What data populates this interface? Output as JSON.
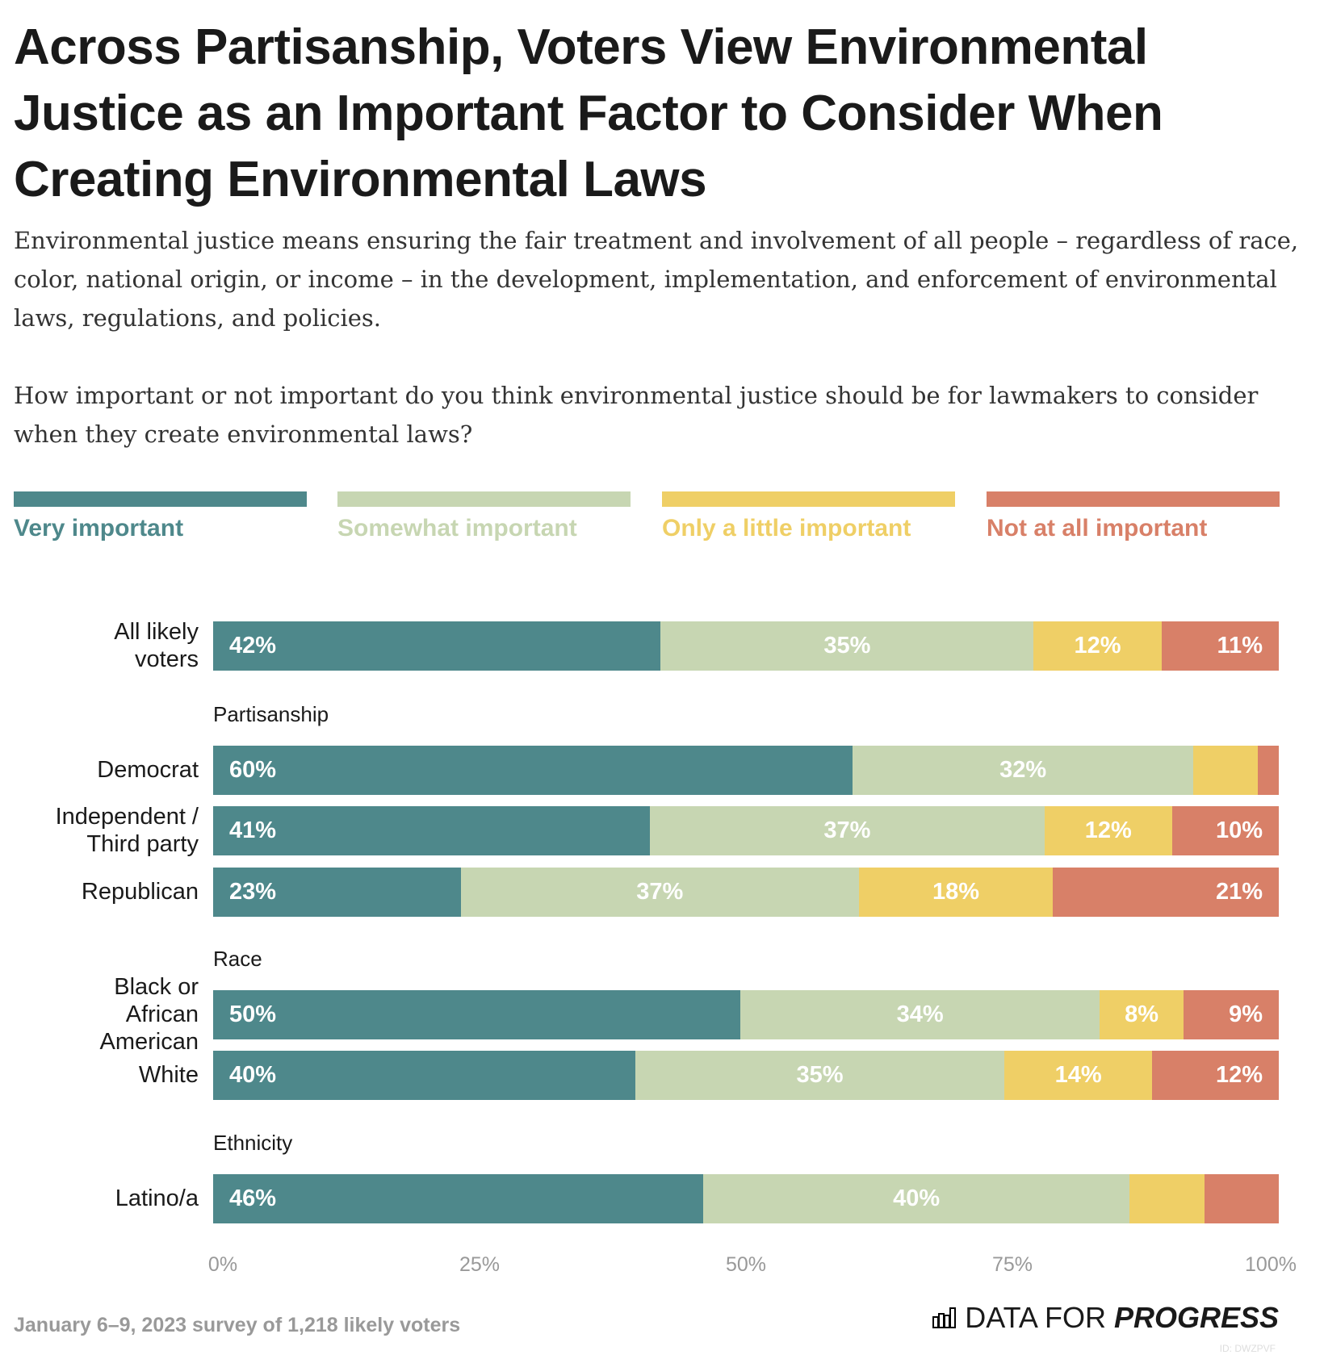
{
  "title": "Across Partisanship, Voters View Environmental Justice as an Important Factor to Consider When Creating Environmental Laws",
  "subtitle": "Environmental justice means ensuring the fair treatment and involvement of all people – regardless of race, color, national origin, or income – in the development, implementation, and enforcement of environmental laws, regulations, and policies.",
  "question": "How important or not important do you think environmental justice should be for lawmakers to consider when they create environmental laws?",
  "footer": "January 6–9, 2023 survey of 1,218 likely voters",
  "logo": {
    "light": "DATA FOR",
    "bold": "PROGRESS",
    "id": "ID: DWZPVF"
  },
  "chart_data": {
    "type": "bar",
    "orientation": "horizontal-stacked",
    "legend_placement": "top",
    "series": [
      {
        "name": "Very important",
        "color": "#4e888b"
      },
      {
        "name": "Somewhat important",
        "color": "#c7d6b2"
      },
      {
        "name": "Only a little important",
        "color": "#efcf66"
      },
      {
        "name": "Not at all important",
        "color": "#d88068"
      }
    ],
    "groups": [
      "",
      "Partisanship",
      "Race",
      "Ethnicity"
    ],
    "rows": [
      {
        "label": "All likely voters",
        "group": 0,
        "values": [
          42,
          35,
          12,
          11
        ],
        "labels": [
          "42%",
          "35%",
          "12%",
          "11%"
        ]
      },
      {
        "label": "Democrat",
        "group": 1,
        "values": [
          60,
          32,
          6,
          2
        ],
        "labels": [
          "60%",
          "32%",
          "",
          ""
        ]
      },
      {
        "label": "Independent / Third party",
        "group": 1,
        "values": [
          41,
          37,
          12,
          10
        ],
        "labels": [
          "41%",
          "37%",
          "12%",
          "10%"
        ]
      },
      {
        "label": "Republican",
        "group": 1,
        "values": [
          23,
          37,
          18,
          21
        ],
        "labels": [
          "23%",
          "37%",
          "18%",
          "21%"
        ]
      },
      {
        "label": "Black or African American",
        "group": 2,
        "values": [
          50,
          34,
          8,
          9
        ],
        "labels": [
          "50%",
          "34%",
          "8%",
          "9%"
        ]
      },
      {
        "label": "White",
        "group": 2,
        "values": [
          40,
          35,
          14,
          12
        ],
        "labels": [
          "40%",
          "35%",
          "14%",
          "12%"
        ]
      },
      {
        "label": "Latino/a",
        "group": 3,
        "values": [
          46,
          40,
          7,
          7
        ],
        "labels": [
          "46%",
          "40%",
          "",
          ""
        ]
      }
    ],
    "xticks": [
      "0%",
      "25%",
      "50%",
      "75%",
      "100%"
    ],
    "xlim": [
      0,
      100
    ]
  }
}
